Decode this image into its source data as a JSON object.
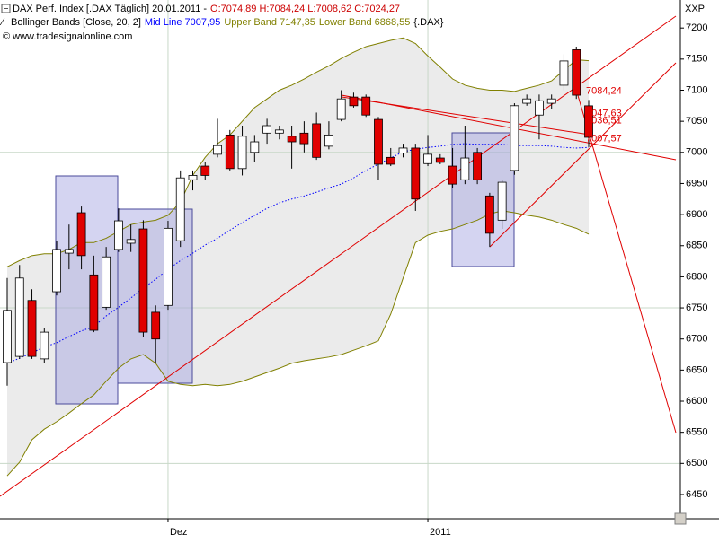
{
  "chart_data": {
    "type": "candlestick",
    "title": "DAX Perf. Index [.DAX Täglich] 20.01.2011 -",
    "ohlc_text": "O:7074,89 H:7084,24 L:7008,62 C:7024,27",
    "indicator": "Bollinger Bands [Close, 20, 2]",
    "symbol": "{.DAX}",
    "copyright": "© www.tradesignalonline.com",
    "axis_unit": "XXP",
    "categories": [
      null,
      null,
      null,
      null,
      null,
      null,
      null,
      null,
      null,
      null,
      null,
      null,
      null,
      "Dez",
      null,
      null,
      null,
      null,
      null,
      null,
      null,
      null,
      null,
      null,
      null,
      null,
      null,
      null,
      null,
      null,
      null,
      null,
      null,
      null,
      "2011",
      null,
      null,
      null,
      null,
      null,
      null,
      null,
      null,
      null,
      null,
      null,
      null,
      null
    ],
    "open": [
      6662,
      6672,
      6762,
      6668,
      6776,
      6838,
      6903,
      6803,
      6751,
      6844,
      6854,
      6877,
      6743,
      6754,
      6858,
      6956,
      6978,
      6997,
      7028,
      6974,
      7000,
      7031,
      7031,
      7026,
      7031,
      7046,
      7010,
      7053,
      7089,
      7089,
      7053,
      6992,
      6999,
      7007,
      6982,
      6991,
      6978,
      6956,
      7000,
      6930,
      6891,
      6971,
      7079,
      7060,
      7079,
      7108,
      7165,
      7074.89
    ],
    "high": [
      6798,
      6819,
      6780,
      6718,
      6858,
      6884,
      6913,
      6834,
      6848,
      6910,
      6884,
      6891,
      6754,
      6890,
      6971,
      6971,
      6985,
      7054,
      7036,
      7043,
      7028,
      7054,
      7043,
      7043,
      7050,
      7064,
      7050,
      7100,
      7096,
      7093,
      7057,
      7007,
      7014,
      7014,
      7028,
      6997,
      7007,
      7043,
      7007,
      6935,
      6956,
      7079,
      7093,
      7093,
      7093,
      7158,
      7170,
      7084.24
    ],
    "low": [
      6625,
      6668,
      6668,
      6661,
      6770,
      6812,
      6812,
      6711,
      6747,
      6840,
      6840,
      6704,
      6661,
      6747,
      6848,
      6939,
      6956,
      6992,
      6971,
      6963,
      6985,
      7014,
      7021,
      6974,
      7000,
      6988,
      7005,
      7050,
      7072,
      7057,
      6956,
      6978,
      6992,
      6906,
      6978,
      6981,
      6942,
      6949,
      6949,
      6848,
      6877,
      6964,
      7075,
      7021,
      7069,
      7100,
      7086,
      7008.62
    ],
    "close": [
      6746,
      6798,
      6672,
      6711,
      6844,
      6844,
      6834,
      6714,
      6832,
      6890,
      6860,
      6711,
      6700,
      6878,
      6959,
      6963,
      6963,
      7011,
      6974,
      7026,
      7017,
      7043,
      7036,
      7017,
      7014,
      6992,
      7028,
      7086,
      7075,
      7060,
      6981,
      6981,
      7007,
      6925,
      6997,
      6984,
      6949,
      6991,
      6956,
      6870,
      6952,
      7075,
      7086,
      7083,
      7086,
      7147,
      7092,
      7024.27
    ],
    "up_color": "#ffffff",
    "down_color": "#e00000",
    "series": [
      {
        "name": "Mid Line 7007,95",
        "color": "#0000ff",
        "values": [
          6661,
          6669,
          6678,
          6687,
          6694,
          6704,
          6713,
          6720,
          6737,
          6751,
          6766,
          6782,
          6796,
          6812,
          6826,
          6838,
          6851,
          6862,
          6875,
          6887,
          6899,
          6910,
          6919,
          6925,
          6930,
          6936,
          6943,
          6949,
          6959,
          6971,
          6981,
          6991,
          7001,
          7005,
          7008,
          7010,
          7013,
          7014,
          7013,
          7013,
          7013,
          7011,
          7011,
          7011,
          7010,
          7008,
          7007,
          7007.95
        ]
      },
      {
        "name": "Upper Band 7147,35",
        "color": "#808000",
        "values": [
          6816,
          6826,
          6834,
          6837,
          6837,
          6844,
          6855,
          6855,
          6862,
          6873,
          6884,
          6888,
          6891,
          6899,
          6920,
          6963,
          6992,
          7014,
          7028,
          7050,
          7072,
          7086,
          7100,
          7108,
          7118,
          7129,
          7139,
          7151,
          7161,
          7170,
          7175,
          7180,
          7184,
          7175,
          7155,
          7137,
          7118,
          7108,
          7103,
          7100,
          7100,
          7098,
          7103,
          7108,
          7115,
          7132,
          7149,
          7147.35
        ]
      },
      {
        "name": "Lower Band 6868,55",
        "color": "#808000",
        "values": [
          6480,
          6502,
          6538,
          6555,
          6567,
          6581,
          6596,
          6610,
          6632,
          6653,
          6668,
          6675,
          6661,
          6632,
          6627,
          6625,
          6627,
          6625,
          6627,
          6632,
          6639,
          6646,
          6653,
          6661,
          6665,
          6668,
          6671,
          6675,
          6682,
          6689,
          6697,
          6740,
          6798,
          6855,
          6867,
          6873,
          6877,
          6884,
          6891,
          6901,
          6906,
          6903,
          6899,
          6896,
          6891,
          6884,
          6878,
          6868.55
        ]
      }
    ],
    "band_fill": "#ebebeb",
    "price_labels": [
      {
        "value": 7084.24,
        "label": "7084,24"
      },
      {
        "value": 7047.63,
        "label": "7047,63"
      },
      {
        "value": 7036.51,
        "label": "7036,51"
      },
      {
        "value": 7007.57,
        "label": "7007,57"
      }
    ],
    "ylim": [
      6411,
      7245
    ],
    "yticks": [
      6450,
      6500,
      6550,
      6600,
      6650,
      6700,
      6750,
      6800,
      6850,
      6900,
      6950,
      7000,
      7050,
      7100,
      7150,
      7200
    ],
    "ygrid": [
      6500,
      6750,
      7000
    ],
    "grid": true
  }
}
